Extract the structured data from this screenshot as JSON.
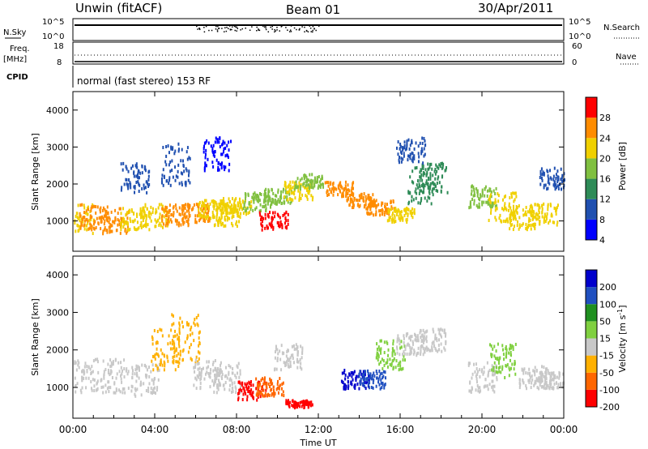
{
  "header": {
    "station": "Unwin (fitACF)",
    "beam": "Beam 01",
    "date": "30/Apr/2011"
  },
  "summary": {
    "nsky_label": "N.Sky",
    "nsky_ticks": [
      "10^5",
      "10^0"
    ],
    "nsearch_label": "N.Search",
    "nsearch_ticks": [
      "10^5",
      "10^0"
    ],
    "freq_label": "Freq.",
    "freq_unit": "[MHz]",
    "freq_ticks": [
      "18",
      "8"
    ],
    "nave_label": "Nave",
    "nave_ticks": [
      "60",
      "0"
    ],
    "cpid_label": "CPID",
    "cpid_text": "normal (fast stereo) 153 RF"
  },
  "chart_data": [
    {
      "type": "heatmap",
      "quantity": "Power",
      "ylabel": "Slant Range [km]",
      "ylim": [
        180,
        4500
      ],
      "yticks": [
        "1000",
        "2000",
        "3000",
        "4000"
      ],
      "xlim_hours": [
        0,
        24
      ],
      "colorbar": {
        "label": "Power [dB]",
        "ticks": [
          "28",
          "24",
          "20",
          "16",
          "12",
          "8",
          "4"
        ],
        "colors": [
          "#0000ff",
          "#2050b0",
          "#2e8b57",
          "#80c040",
          "#f0d000",
          "#ff8c00",
          "#ff0000"
        ]
      }
    },
    {
      "type": "heatmap",
      "quantity": "Velocity",
      "ylabel": "Slant Range [km]",
      "ylim": [
        180,
        4500
      ],
      "yticks": [
        "1000",
        "2000",
        "3000",
        "4000"
      ],
      "xlim_hours": [
        0,
        24
      ],
      "colorbar": {
        "label": "Velocity [m s",
        "label_sup": "-1",
        "label_end": "]",
        "ticks": [
          "200",
          "100",
          "50",
          "15",
          "-15",
          "-50",
          "-100",
          "-200"
        ],
        "colors": [
          "#ff0000",
          "#ff6600",
          "#ffb000",
          "#c8c8c8",
          "#80d040",
          "#209020",
          "#2050c0",
          "#0000cc"
        ]
      }
    }
  ],
  "xaxis": {
    "ticks": [
      "00:00",
      "04:00",
      "08:00",
      "12:00",
      "16:00",
      "20:00",
      "00:00"
    ],
    "label": "Time UT"
  },
  "power_scatter": [
    {
      "t": 0.3,
      "r": [
        700,
        1500
      ],
      "c": 4
    },
    {
      "t": 1,
      "r": [
        800,
        1500
      ],
      "c": 5
    },
    {
      "t": 2,
      "r": [
        700,
        1400
      ],
      "c": 5
    },
    {
      "t": 3,
      "r": [
        800,
        1400
      ],
      "c": 4
    },
    {
      "t": 4,
      "r": [
        850,
        1500
      ],
      "c": 4
    },
    {
      "t": 5,
      "r": [
        900,
        1500
      ],
      "c": 5
    },
    {
      "t": 6,
      "r": [
        1000,
        1500
      ],
      "c": 5
    },
    {
      "t": 6.8,
      "r": [
        1100,
        1600
      ],
      "c": 4
    },
    {
      "t": 7.5,
      "r": [
        900,
        1550
      ],
      "c": 4
    },
    {
      "t": 8,
      "r": [
        1200,
        1650
      ],
      "c": 4
    },
    {
      "t": 9,
      "r": [
        1300,
        1800
      ],
      "c": 3
    },
    {
      "t": 9.8,
      "r": [
        800,
        1300
      ],
      "c": 6
    },
    {
      "t": 10,
      "r": [
        1500,
        1900
      ],
      "c": 3
    },
    {
      "t": 11,
      "r": [
        1600,
        2100
      ],
      "c": 4
    },
    {
      "t": 11.5,
      "r": [
        1900,
        2300
      ],
      "c": 3
    },
    {
      "t": 13,
      "r": [
        1700,
        2100
      ],
      "c": 5
    },
    {
      "t": 14,
      "r": [
        1400,
        1800
      ],
      "c": 5
    },
    {
      "t": 15,
      "r": [
        1200,
        1600
      ],
      "c": 5
    },
    {
      "t": 16,
      "r": [
        1000,
        1400
      ],
      "c": 4
    },
    {
      "t": 17,
      "r": [
        1500,
        2500
      ],
      "c": 2
    },
    {
      "t": 17.6,
      "r": [
        1800,
        2600
      ],
      "c": 2
    },
    {
      "t": 20,
      "r": [
        1400,
        2000
      ],
      "c": 3
    },
    {
      "t": 21,
      "r": [
        1000,
        1800
      ],
      "c": 4
    },
    {
      "t": 22,
      "r": [
        800,
        1500
      ],
      "c": 4
    },
    {
      "t": 23,
      "r": [
        900,
        1500
      ],
      "c": 4
    },
    {
      "t": 3,
      "r": [
        1800,
        2600
      ],
      "c": 1
    },
    {
      "t": 5,
      "r": [
        2000,
        3200
      ],
      "c": 1
    },
    {
      "t": 7,
      "r": [
        2400,
        3300
      ],
      "c": 0
    },
    {
      "t": 16.5,
      "r": [
        2600,
        3300
      ],
      "c": 1
    },
    {
      "t": 23.5,
      "r": [
        1900,
        2500
      ],
      "c": 1
    }
  ],
  "velocity_scatter": [
    {
      "t": 0.5,
      "r": [
        900,
        1800
      ],
      "c": 3
    },
    {
      "t": 2,
      "r": [
        900,
        1800
      ],
      "c": 3
    },
    {
      "t": 3.5,
      "r": [
        800,
        1700
      ],
      "c": 3
    },
    {
      "t": 4.5,
      "r": [
        1500,
        2600
      ],
      "c": 2
    },
    {
      "t": 5.5,
      "r": [
        1700,
        3000
      ],
      "c": 2
    },
    {
      "t": 6.5,
      "r": [
        1000,
        1800
      ],
      "c": 3
    },
    {
      "t": 7.5,
      "r": [
        900,
        1700
      ],
      "c": 3
    },
    {
      "t": 8.7,
      "r": [
        700,
        1200
      ],
      "c": 0
    },
    {
      "t": 9.6,
      "r": [
        800,
        1300
      ],
      "c": 1
    },
    {
      "t": 10.5,
      "r": [
        1500,
        2200
      ],
      "c": 3
    },
    {
      "t": 13.8,
      "r": [
        1000,
        1500
      ],
      "c": 7
    },
    {
      "t": 14.6,
      "r": [
        1000,
        1500
      ],
      "c": 6
    },
    {
      "t": 15.5,
      "r": [
        1500,
        2300
      ],
      "c": 4
    },
    {
      "t": 16.5,
      "r": [
        1900,
        2500
      ],
      "c": 3
    },
    {
      "t": 17.5,
      "r": [
        2000,
        2600
      ],
      "c": 3
    },
    {
      "t": 20,
      "r": [
        900,
        1700
      ],
      "c": 3
    },
    {
      "t": 21,
      "r": [
        1300,
        2200
      ],
      "c": 4
    },
    {
      "t": 22.5,
      "r": [
        1000,
        1600
      ],
      "c": 3
    },
    {
      "t": 23.3,
      "r": [
        1000,
        1500
      ],
      "c": 3
    },
    {
      "t": 11,
      "r": [
        500,
        700
      ],
      "c": 0
    }
  ]
}
